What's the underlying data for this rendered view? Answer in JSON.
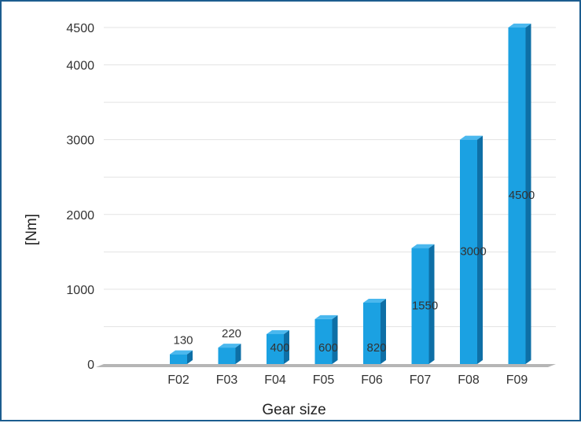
{
  "chart_data": {
    "type": "bar",
    "categories": [
      "F02",
      "F03",
      "F04",
      "F05",
      "F06",
      "F07",
      "F08",
      "F09"
    ],
    "values": [
      130,
      220,
      400,
      600,
      820,
      1550,
      3000,
      4500
    ],
    "data_labels": [
      "130",
      "220",
      "400",
      "600",
      "820",
      "1550",
      "3000",
      "4500"
    ],
    "xlabel": "Gear size",
    "ylabel": "[Nm]",
    "ylim": [
      0,
      4500
    ],
    "yticks": [
      0,
      1000,
      2000,
      3000,
      4000,
      4500
    ],
    "ytick_labels": [
      "0",
      "1000",
      "2000",
      "3000",
      "4000",
      "4500"
    ],
    "grid": true,
    "colors": {
      "bar_front": "#1ba1e2",
      "bar_side": "#0e6fa6",
      "bar_top": "#4bb8ee",
      "grid": "#e3e3e3",
      "floor": "#b5b5b5",
      "border": "#1c5d8f"
    }
  }
}
